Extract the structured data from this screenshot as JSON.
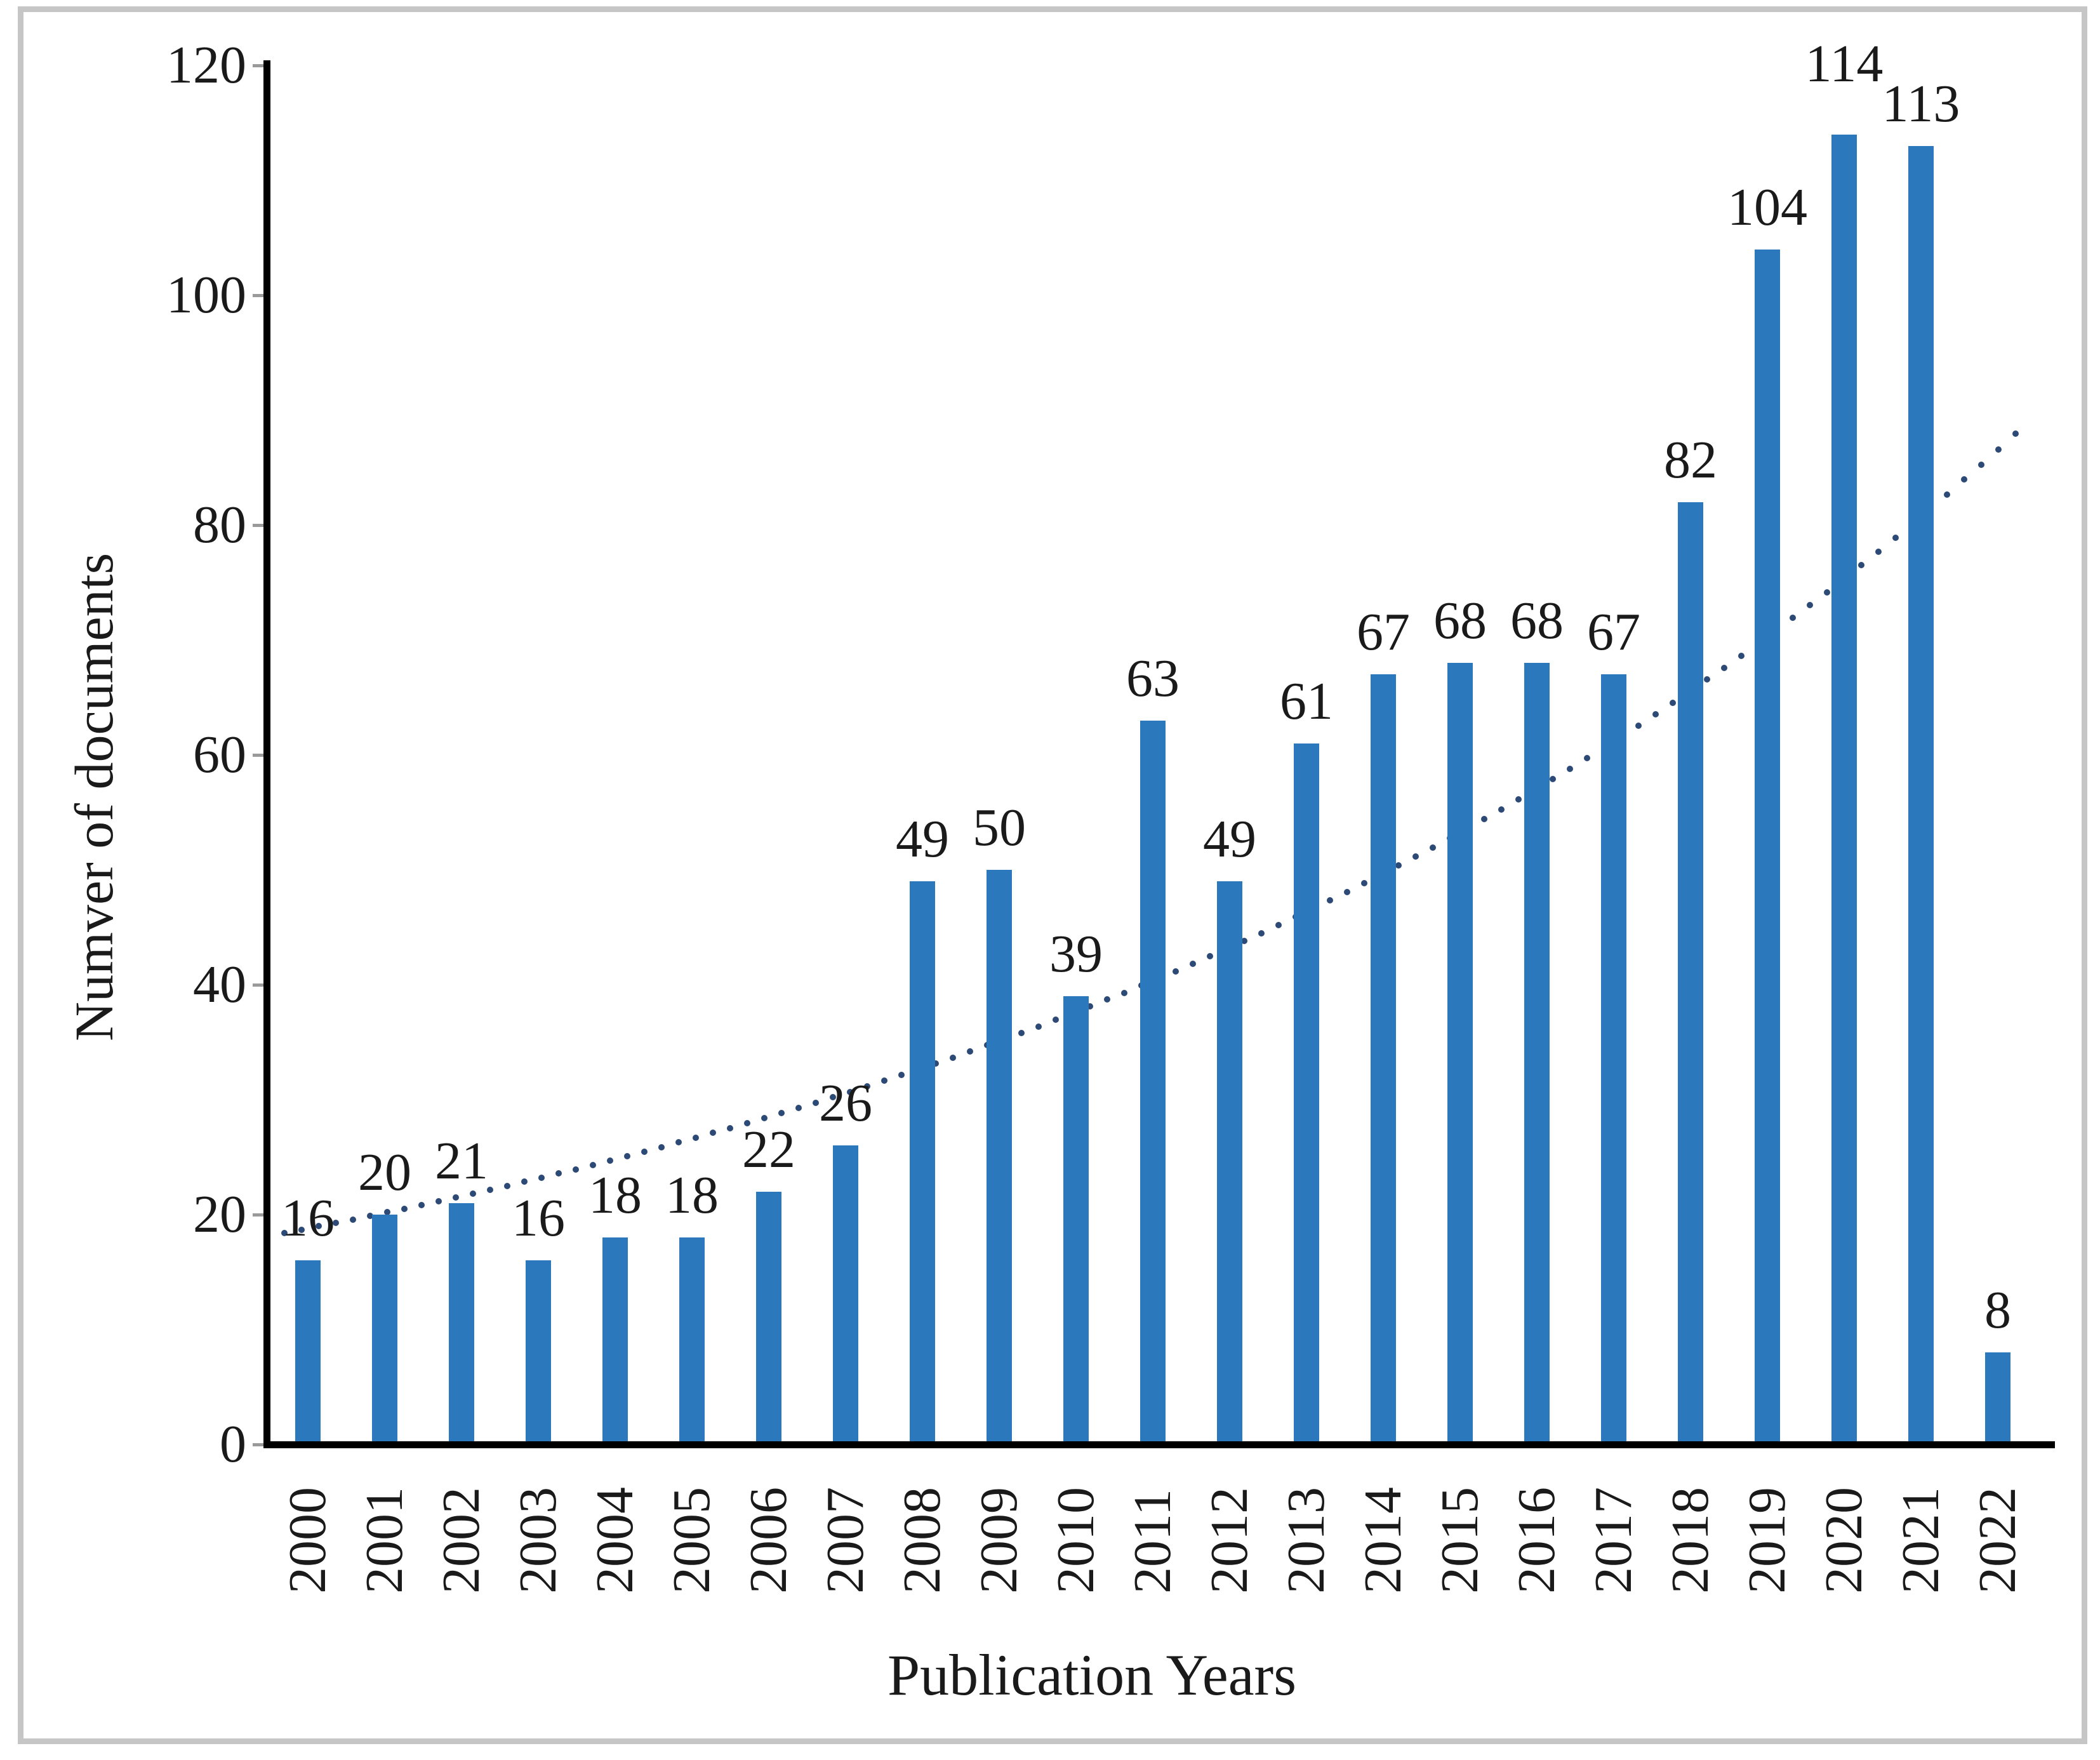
{
  "figure": {
    "background": "#ffffff",
    "border_color": "#c6c6c6"
  },
  "chart_data": {
    "type": "bar",
    "title": "",
    "xlabel": "Publication Years",
    "ylabel": "Numver of documents",
    "categories": [
      "2000",
      "2001",
      "2002",
      "2003",
      "2004",
      "2005",
      "2006",
      "2007",
      "2008",
      "2009",
      "2010",
      "2011",
      "2012",
      "2013",
      "2014",
      "2015",
      "2016",
      "2017",
      "2018",
      "2019",
      "2020",
      "2021",
      "2022"
    ],
    "values": [
      16,
      20,
      21,
      16,
      18,
      18,
      22,
      26,
      49,
      50,
      39,
      63,
      49,
      61,
      67,
      68,
      68,
      67,
      82,
      104,
      114,
      113,
      8
    ],
    "ylim": [
      0,
      120
    ],
    "yticks": [
      0,
      20,
      40,
      60,
      80,
      100,
      120
    ],
    "grid": "off",
    "legend": "none",
    "data_labels": true,
    "bar_color": "#2b79bc",
    "axis_color": "#000000",
    "text_color": "#1a1a1a",
    "trendline": {
      "type": "exponential",
      "style": "dotted",
      "color": "#2c4a75",
      "start_value": 18.8,
      "end_value": 89,
      "growth_per_year": 0.0694,
      "extends_past_last_bar": true
    }
  }
}
